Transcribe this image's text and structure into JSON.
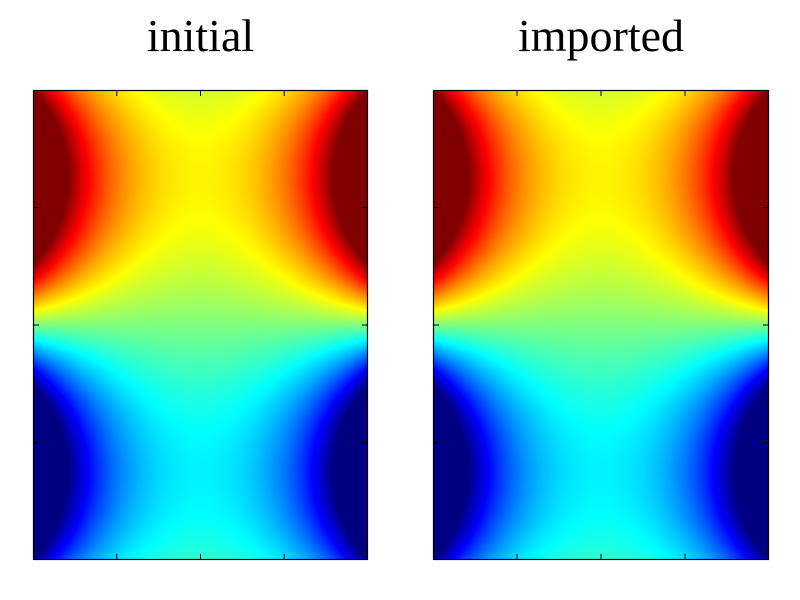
{
  "chart_data": [
    {
      "type": "heatmap",
      "title": "initial",
      "colormap": "jet",
      "field": "cosh(k*x)*sin(k*y) on a rectangular domain, symmetric left-right, antisymmetric top-bottom",
      "value_range": [
        -1,
        1
      ],
      "k": 2.5,
      "x_range": [
        -1,
        1
      ],
      "y_range": [
        -1,
        1
      ],
      "xtick_count": 3,
      "ytick_count": 3,
      "tick_labels_shown": false,
      "grid": false
    },
    {
      "type": "heatmap",
      "title": "imported",
      "colormap": "jet",
      "field": "cosh(k*x)*sin(k*y) on a rectangular domain, symmetric left-right, antisymmetric top-bottom",
      "value_range": [
        -1,
        1
      ],
      "k": 2.5,
      "x_range": [
        -1,
        1
      ],
      "y_range": [
        -1,
        1
      ],
      "xtick_count": 3,
      "ytick_count": 3,
      "tick_labels_shown": false,
      "grid": false
    }
  ]
}
